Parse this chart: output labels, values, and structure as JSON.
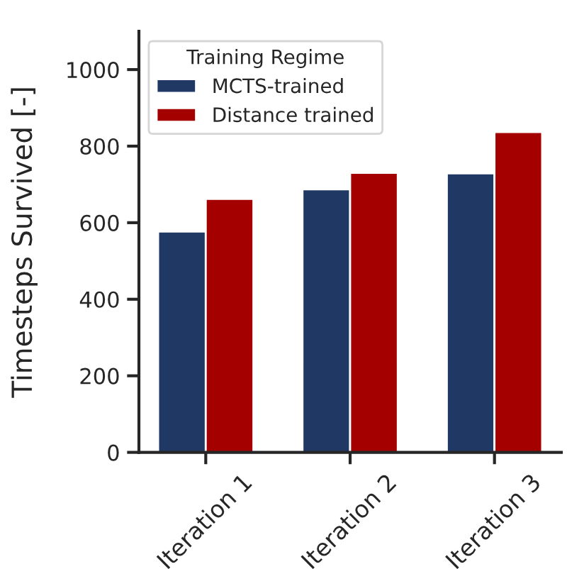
{
  "chart_data": {
    "type": "bar",
    "ylabel": "Timesteps Survived [-]",
    "legend_title": "Training Regime",
    "categories": [
      "Iteration 1",
      "Iteration 2",
      "Iteration 3"
    ],
    "series": [
      {
        "name": "MCTS-trained",
        "color": "#203864",
        "values": [
          577,
          687,
          729
        ]
      },
      {
        "name": "Distance trained",
        "color": "#a50000",
        "values": [
          662,
          730,
          837
        ]
      }
    ],
    "ylim": [
      0,
      1100
    ],
    "yticks": [
      0,
      200,
      400,
      600,
      800,
      1000
    ],
    "grid": false,
    "legend": "top left"
  }
}
